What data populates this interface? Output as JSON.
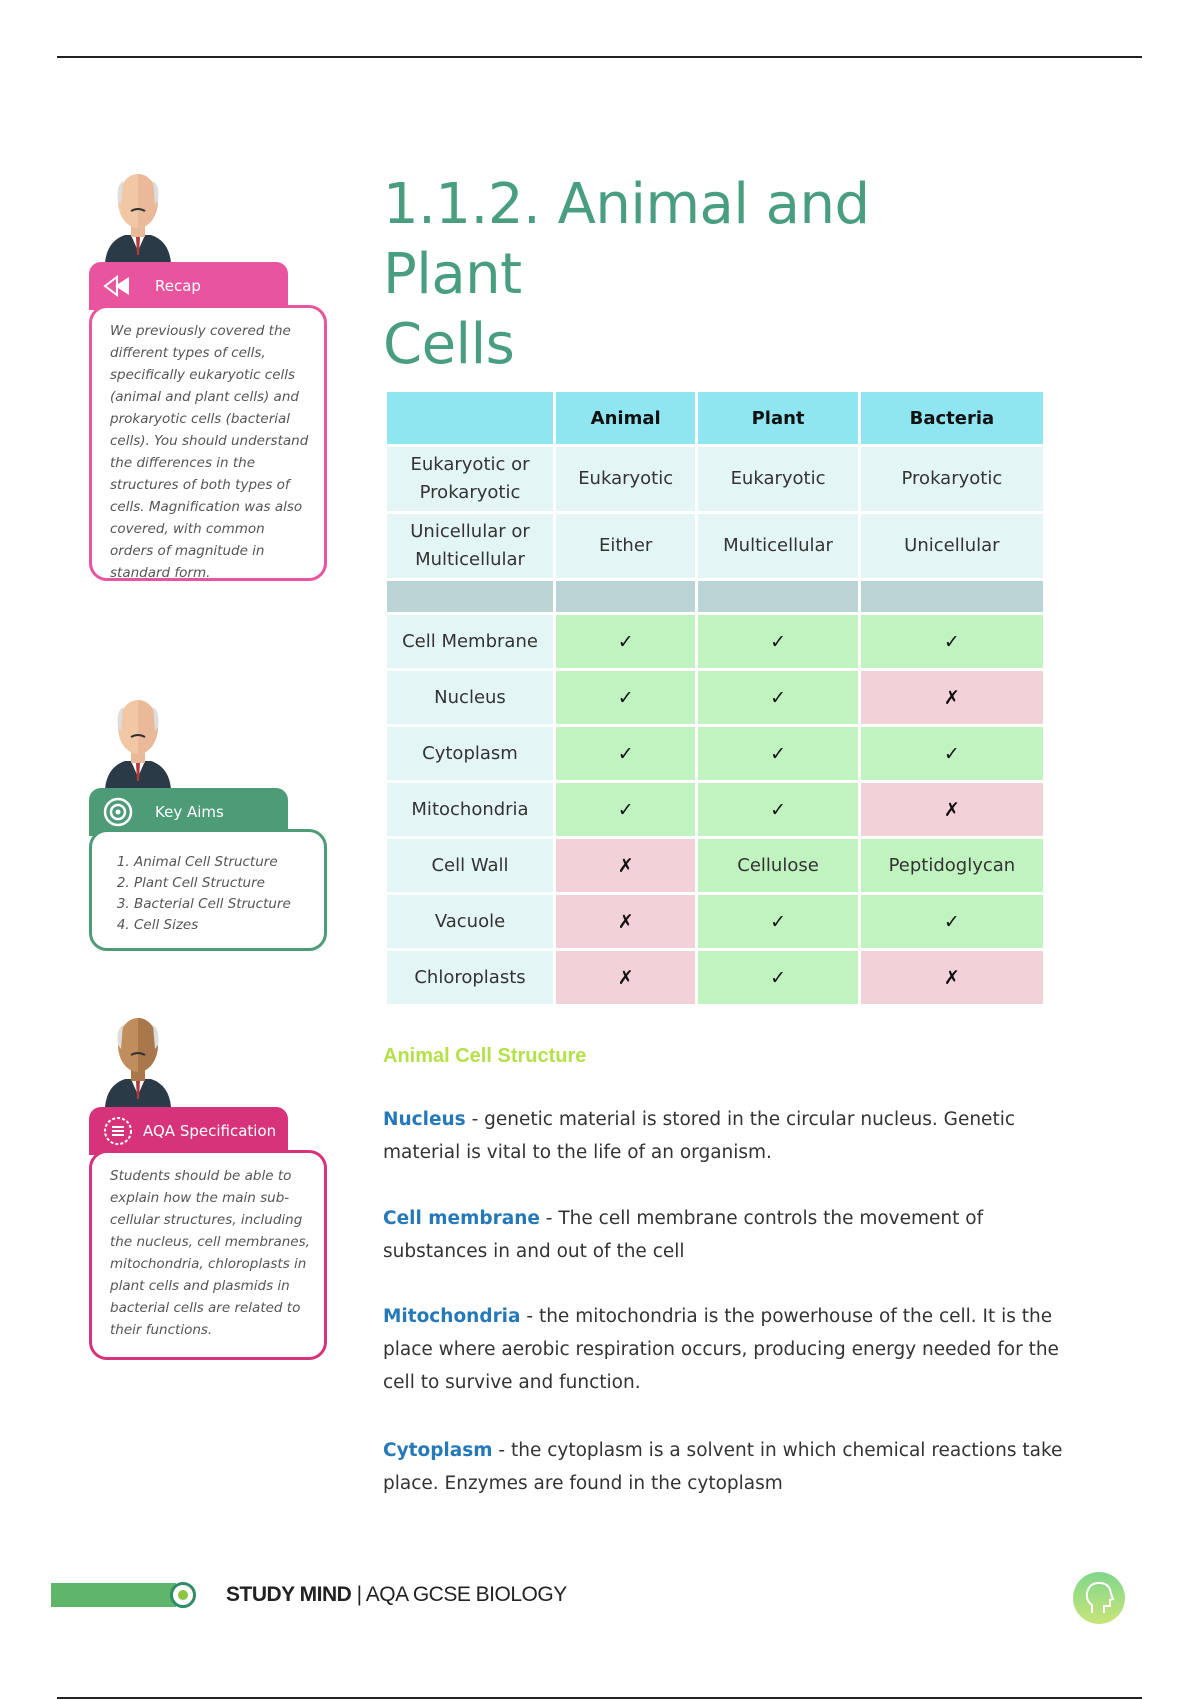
{
  "title": {
    "line1": "1.1.2. Animal and Plant",
    "line2": "Cells"
  },
  "colors": {
    "title": "#4a9e80",
    "recap": "#e8559e",
    "key_aims": "#4e9b78",
    "aqa": "#d6337a",
    "heading": "#b4e04a",
    "keyword": "#2679b8",
    "yes": "#c1f3c0",
    "no": "#f2d1d8",
    "header": "#8fe6f1"
  },
  "sidebar": {
    "recap": {
      "label": "Recap",
      "icon": "rewind-icon",
      "text": "We previously covered the different types of cells, specifically eukaryotic cells (animal and plant cells) and prokaryotic cells (bacterial cells). You should understand the differences in the structures of both types of cells. Magnification was also covered, with common orders of magnitude in standard form."
    },
    "key_aims": {
      "label": "Key Aims",
      "icon": "target-icon",
      "items": [
        "Animal Cell Structure",
        "Plant Cell Structure",
        "Bacterial Cell Structure",
        "Cell Sizes"
      ]
    },
    "aqa": {
      "label": "AQA Specification",
      "icon": "list-icon",
      "text": "Students should be able to explain how the main sub-cellular structures, including the nucleus, cell membranes, mitochondria, chloroplasts in plant cells and plasmids in bacterial cells are related to their functions."
    }
  },
  "table": {
    "headers": [
      "",
      "Animal",
      "Plant",
      "Bacteria"
    ],
    "info_rows": [
      {
        "label": "Eukaryotic or Prokaryotic",
        "values": [
          "Eukaryotic",
          "Eukaryotic",
          "Prokaryotic"
        ]
      },
      {
        "label": "Unicellular or Multicellular",
        "values": [
          "Either",
          "Multicellular",
          "Unicellular"
        ]
      }
    ],
    "feature_rows": [
      {
        "label": "Cell Membrane",
        "values": [
          "✓",
          "✓",
          "✓"
        ],
        "present": [
          true,
          true,
          true
        ]
      },
      {
        "label": "Nucleus",
        "values": [
          "✓",
          "✓",
          "✗"
        ],
        "present": [
          true,
          true,
          false
        ]
      },
      {
        "label": "Cytoplasm",
        "values": [
          "✓",
          "✓",
          "✓"
        ],
        "present": [
          true,
          true,
          true
        ]
      },
      {
        "label": "Mitochondria",
        "values": [
          "✓",
          "✓",
          "✗"
        ],
        "present": [
          true,
          true,
          false
        ]
      },
      {
        "label": "Cell Wall",
        "values": [
          "✗",
          "Cellulose",
          "Peptidoglycan"
        ],
        "present": [
          false,
          true,
          true
        ]
      },
      {
        "label": "Vacuole",
        "values": [
          "✗",
          "✓",
          "✓"
        ],
        "present": [
          false,
          true,
          true
        ]
      },
      {
        "label": "Chloroplasts",
        "values": [
          "✗",
          "✓",
          "✗"
        ],
        "present": [
          false,
          true,
          false
        ]
      }
    ]
  },
  "section": {
    "heading": "Animal Cell Structure",
    "paragraphs": [
      {
        "term": "Nucleus",
        "text": " - genetic material is stored in the circular nucleus. Genetic material is vital to the life of an organism."
      },
      {
        "term": "Cell membrane",
        "text": " - The cell membrane controls the movement of substances in and out of the cell"
      },
      {
        "term": "Mitochondria",
        "text": " - the mitochondria is the powerhouse of the cell. It is the place where aerobic respiration occurs, producing energy needed for the cell to survive and function."
      },
      {
        "term": "Cytoplasm",
        "text": " - the cytoplasm is a solvent in which chemical reactions take place. Enzymes are found in the cytoplasm"
      }
    ]
  },
  "footer": {
    "brand": "STUDY MIND",
    "separator": "|",
    "subject": "AQA GCSE BIOLOGY",
    "logo_icon": "head-icon"
  }
}
